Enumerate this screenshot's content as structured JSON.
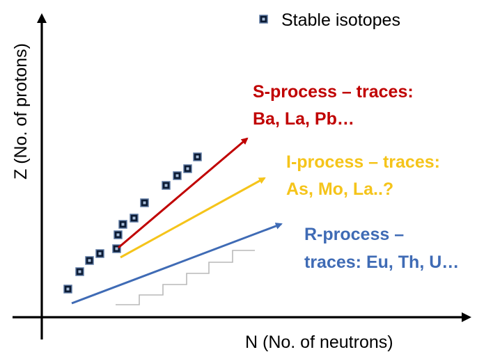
{
  "diagram": {
    "y_axis_label": "Z (No. of protons)",
    "x_axis_label": "N (No. of neutrons)",
    "legend": {
      "icon": "square-marker-icon",
      "label": "Stable isotopes"
    },
    "processes": [
      {
        "id": "s",
        "line1": "S-process – traces:",
        "line2": "Ba, La, Pb…",
        "color": "#c00000"
      },
      {
        "id": "i",
        "line1": "I-process – traces:",
        "line2": "As, Mo, La..?",
        "color": "#f5c41a"
      },
      {
        "id": "r",
        "line1": "R-process –",
        "line2": "traces: Eu, Th, U…",
        "color": "#3f6bb5"
      }
    ]
  }
}
